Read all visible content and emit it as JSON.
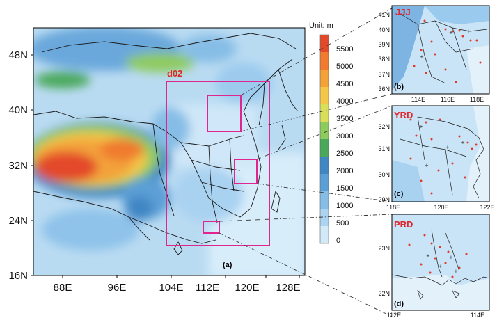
{
  "main_map": {
    "panel_label": "(a)",
    "domain_label": "d02",
    "lat_ticks": [
      "48N",
      "40N",
      "32N",
      "24N",
      "16N"
    ],
    "lon_ticks": [
      "88E",
      "96E",
      "104E",
      "112E",
      "120E",
      "128E"
    ]
  },
  "colorbar": {
    "unit_label": "Unit: m",
    "ticks": [
      "5500",
      "5000",
      "4500",
      "4000",
      "3500",
      "3000",
      "2500",
      "2000",
      "1500",
      "1000",
      "500",
      "0"
    ],
    "colors": [
      "#e34a2a",
      "#f07a2e",
      "#f3a23a",
      "#f4c74a",
      "#d9df5a",
      "#8ecb5e",
      "#4aa85a",
      "#3f86c4",
      "#5b9fd6",
      "#86bde6",
      "#acd4f0",
      "#d2e9f8"
    ]
  },
  "insets": [
    {
      "region": "JJJ",
      "panel": "(b)",
      "lat_ticks": [
        "41N",
        "40N",
        "39N",
        "38N",
        "37N",
        "36N"
      ],
      "lon_ticks": [
        "114E",
        "116E",
        "118E"
      ]
    },
    {
      "region": "YRD",
      "panel": "(c)",
      "lat_ticks": [
        "32N",
        "31N",
        "30N",
        "29N"
      ],
      "lon_ticks": [
        "118E",
        "120E",
        "122E"
      ]
    },
    {
      "region": "PRD",
      "panel": "(d)",
      "lat_ticks": [
        "23N",
        "22N"
      ],
      "lon_ticks": [
        "112E",
        "114E"
      ]
    }
  ],
  "colors": {
    "highlight": "#e0258f",
    "site_red": "#e23a2a",
    "region_text": "#e0252b"
  }
}
